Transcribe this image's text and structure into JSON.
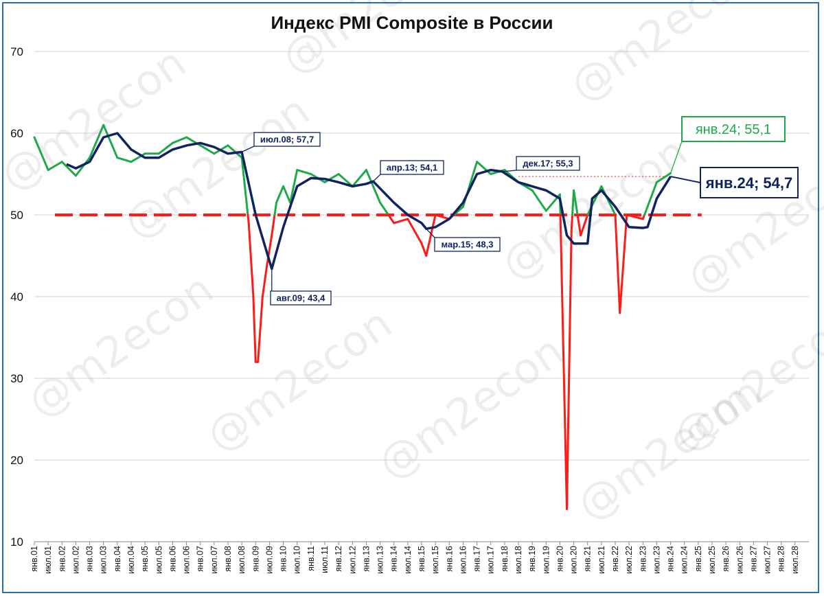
{
  "watermark": "@m2econ",
  "chart_data": {
    "type": "line",
    "title": "Индекс PMI Composite в России",
    "ylim": [
      10,
      70
    ],
    "y_ticks": [
      10,
      20,
      30,
      40,
      50,
      60,
      70
    ],
    "x_tick_labels": [
      "янв.01",
      "июл.01",
      "янв.02",
      "июл.02",
      "янв.03",
      "июл.03",
      "янв.04",
      "июл.04",
      "янв.05",
      "июл.05",
      "янв.06",
      "июл.06",
      "янв.07",
      "июл.07",
      "янв.08",
      "июл.08",
      "янв.09",
      "июл.09",
      "янв.10",
      "июл.10",
      "янв.11",
      "июл.11",
      "янв.12",
      "июл.12",
      "янв.13",
      "июл.13",
      "янв.14",
      "июл.14",
      "янв.15",
      "июл.15",
      "янв.16",
      "июл.16",
      "янв.17",
      "июл.17",
      "янв.18",
      "июл.18",
      "янв.19",
      "июл.19",
      "янв.20",
      "июл.20",
      "янв.21",
      "июл.21",
      "янв.22",
      "июл.22",
      "янв.23",
      "июл.23",
      "янв.24",
      "июл.24",
      "янв.25",
      "июл.25",
      "янв.26",
      "июл.26",
      "янв.27",
      "июл.27",
      "янв.28",
      "июл.28"
    ],
    "threshold": 50,
    "series": [
      {
        "color_above": "#1faa4a",
        "color_below": "#ff1a1a",
        "points": [
          [
            "янв.01",
            59.5
          ],
          [
            "июл.01",
            55.5
          ],
          [
            "янв.02",
            56.5
          ],
          [
            "июл.02",
            54.8
          ],
          [
            "янв.03",
            57.0
          ],
          [
            "июл.03",
            61.0
          ],
          [
            "янв.04",
            57.0
          ],
          [
            "июл.04",
            56.5
          ],
          [
            "янв.05",
            57.5
          ],
          [
            "июл.05",
            57.5
          ],
          [
            "янв.06",
            58.8
          ],
          [
            "июл.06",
            59.5
          ],
          [
            "янв.07",
            58.5
          ],
          [
            "июл.07",
            57.5
          ],
          [
            "янв.08",
            58.5
          ],
          [
            "июл.08",
            57.0
          ],
          [
            "окт.08",
            49.0
          ],
          [
            "дек.08",
            40.0
          ],
          [
            "янв.09",
            32.0
          ],
          [
            "фев.09",
            32.0
          ],
          [
            "апр.09",
            40.0
          ],
          [
            "июн.09",
            44.0
          ],
          [
            "авг.09",
            47.5
          ],
          [
            "окт.09",
            51.5
          ],
          [
            "янв.10",
            53.5
          ],
          [
            "апр.10",
            51.5
          ],
          [
            "июл.10",
            55.5
          ],
          [
            "янв.11",
            55.0
          ],
          [
            "июл.11",
            54.0
          ],
          [
            "янв.12",
            55.0
          ],
          [
            "июл.12",
            53.5
          ],
          [
            "янв.13",
            55.5
          ],
          [
            "июл.13",
            51.5
          ],
          [
            "янв.14",
            49.0
          ],
          [
            "июл.14",
            49.5
          ],
          [
            "янв.15",
            46.5
          ],
          [
            "мар.15",
            45.0
          ],
          [
            "июл.15",
            50.0
          ],
          [
            "янв.16",
            49.5
          ],
          [
            "июл.16",
            51.0
          ],
          [
            "янв.17",
            56.5
          ],
          [
            "июл.17",
            55.0
          ],
          [
            "янв.18",
            55.5
          ],
          [
            "июл.18",
            54.0
          ],
          [
            "янв.19",
            53.0
          ],
          [
            "июл.19",
            50.5
          ],
          [
            "янв.20",
            52.5
          ],
          [
            "апр.20",
            14.0
          ],
          [
            "июн.20",
            48.0
          ],
          [
            "июл.20",
            53.0
          ],
          [
            "окт.20",
            47.5
          ],
          [
            "янв.21",
            50.0
          ],
          [
            "июл.21",
            53.5
          ],
          [
            "янв.22",
            50.0
          ],
          [
            "мар.22",
            38.0
          ],
          [
            "июн.22",
            50.0
          ],
          [
            "янв.23",
            49.5
          ],
          [
            "июл.23",
            54.0
          ],
          [
            "янв.24",
            55.1
          ]
        ]
      },
      {
        "color": "#0f2360",
        "points": [
          [
            "мар.02",
            56.2
          ],
          [
            "июл.02",
            55.7
          ],
          [
            "янв.03",
            56.5
          ],
          [
            "июл.03",
            59.5
          ],
          [
            "янв.04",
            60.0
          ],
          [
            "июл.04",
            58.0
          ],
          [
            "янв.05",
            57.0
          ],
          [
            "июл.05",
            57.0
          ],
          [
            "янв.06",
            58.0
          ],
          [
            "июл.06",
            58.5
          ],
          [
            "янв.07",
            58.8
          ],
          [
            "июл.07",
            58.3
          ],
          [
            "янв.08",
            57.5
          ],
          [
            "июл.08",
            57.7
          ],
          [
            "янв.09",
            50.0
          ],
          [
            "авг.09",
            43.4
          ],
          [
            "янв.10",
            48.5
          ],
          [
            "июл.10",
            53.5
          ],
          [
            "янв.11",
            54.5
          ],
          [
            "июл.11",
            54.4
          ],
          [
            "янв.12",
            54.0
          ],
          [
            "июл.12",
            53.5
          ],
          [
            "янв.13",
            53.8
          ],
          [
            "апр.13",
            54.1
          ],
          [
            "янв.14",
            51.5
          ],
          [
            "июл.14",
            50.0
          ],
          [
            "янв.15",
            49.0
          ],
          [
            "мар.15",
            48.3
          ],
          [
            "июл.15",
            48.5
          ],
          [
            "янв.16",
            49.5
          ],
          [
            "июл.16",
            51.5
          ],
          [
            "янв.17",
            55.0
          ],
          [
            "июл.17",
            55.5
          ],
          [
            "дек.17",
            55.3
          ],
          [
            "июл.18",
            54.0
          ],
          [
            "янв.19",
            53.5
          ],
          [
            "июл.19",
            53.0
          ],
          [
            "янв.20",
            52.0
          ],
          [
            "апр.20",
            47.5
          ],
          [
            "июл.20",
            46.5
          ],
          [
            "янв.21",
            46.5
          ],
          [
            "мар.21",
            52.0
          ],
          [
            "июл.21",
            53.0
          ],
          [
            "янв.22",
            51.0
          ],
          [
            "июл.22",
            48.5
          ],
          [
            "янв.23",
            48.4
          ],
          [
            "мар.23",
            48.5
          ],
          [
            "июл.23",
            52.0
          ],
          [
            "янв.24",
            54.7
          ]
        ]
      }
    ],
    "annotations": [
      {
        "text": "июл.08; 57,7"
      },
      {
        "text": "авг.09; 43,4"
      },
      {
        "text": "апр.13; 54,1"
      },
      {
        "text": "мар.15; 48,3"
      },
      {
        "text": "дек.17; 55,3"
      },
      {
        "text": "янв.24;   55,1"
      },
      {
        "text": "янв.24; 54,7"
      }
    ]
  }
}
